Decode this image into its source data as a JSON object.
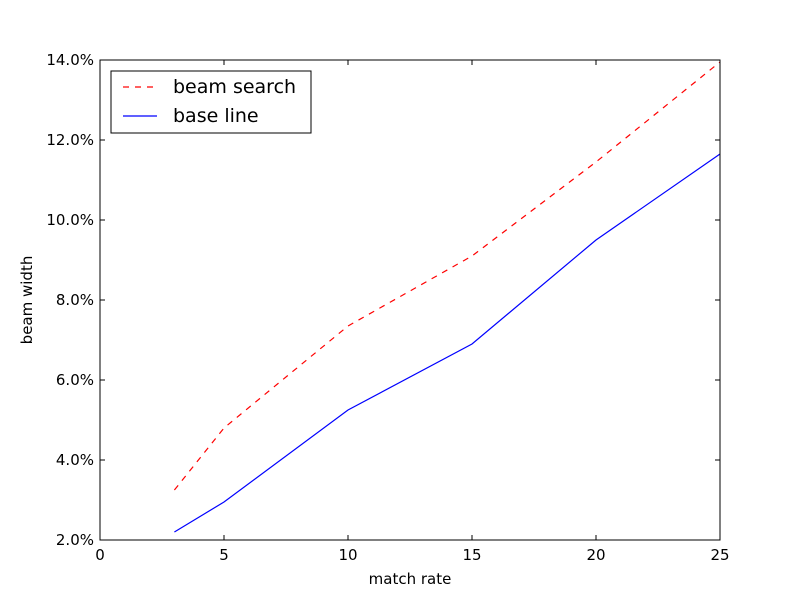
{
  "chart_data": {
    "type": "line",
    "xlabel": "match rate",
    "ylabel": "beam width",
    "xlim": [
      0,
      25
    ],
    "ylim": [
      2.0,
      14.0
    ],
    "xticks": [
      0,
      5,
      10,
      15,
      20,
      25
    ],
    "yticks": [
      2.0,
      4.0,
      6.0,
      8.0,
      10.0,
      12.0,
      14.0
    ],
    "xtick_labels": [
      "0",
      "5",
      "10",
      "15",
      "20",
      "25"
    ],
    "ytick_labels": [
      "2.0%",
      "4.0%",
      "6.0%",
      "8.0%",
      "10.0%",
      "12.0%",
      "14.0%"
    ],
    "grid": false,
    "legend_position": "top-left",
    "series": [
      {
        "name": "beam search",
        "color": "#ff0000",
        "dash": "dashed",
        "x": [
          3,
          5,
          10,
          15,
          20,
          25
        ],
        "y": [
          3.25,
          4.8,
          7.35,
          9.1,
          11.45,
          13.95
        ]
      },
      {
        "name": "base line",
        "color": "#0000ff",
        "dash": "solid",
        "x": [
          3,
          5,
          10,
          15,
          20,
          25
        ],
        "y": [
          2.2,
          2.95,
          5.25,
          6.9,
          9.5,
          11.65
        ]
      }
    ]
  }
}
